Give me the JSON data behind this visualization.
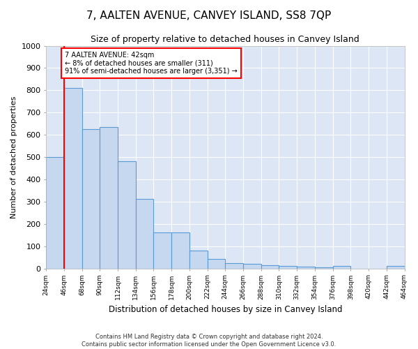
{
  "title": "7, AALTEN AVENUE, CANVEY ISLAND, SS8 7QP",
  "subtitle": "Size of property relative to detached houses in Canvey Island",
  "xlabel": "Distribution of detached houses by size in Canvey Island",
  "ylabel": "Number of detached properties",
  "footer_line1": "Contains HM Land Registry data © Crown copyright and database right 2024.",
  "footer_line2": "Contains public sector information licensed under the Open Government Licence v3.0.",
  "annotation_line1": "7 AALTEN AVENUE: 42sqm",
  "annotation_line2": "← 8% of detached houses are smaller (311)",
  "annotation_line3": "91% of semi-detached houses are larger (3,351) →",
  "bar_values": [
    500,
    810,
    625,
    635,
    483,
    311,
    162,
    162,
    80,
    44,
    25,
    22,
    15,
    12,
    8,
    5,
    10,
    0,
    0,
    10
  ],
  "bar_categories": [
    "24sqm",
    "46sqm",
    "68sqm",
    "90sqm",
    "112sqm",
    "134sqm",
    "156sqm",
    "178sqm",
    "200sqm",
    "222sqm",
    "244sqm",
    "266sqm",
    "288sqm",
    "310sqm",
    "332sqm",
    "354sqm",
    "376sqm",
    "398sqm",
    "420sqm",
    "442sqm",
    "464sqm"
  ],
  "bar_color": "#c5d8f0",
  "bar_edge_color": "#5b9bd5",
  "ylim": [
    0,
    1000
  ],
  "yticks": [
    0,
    100,
    200,
    300,
    400,
    500,
    600,
    700,
    800,
    900,
    1000
  ],
  "plot_bg_color": "#dce6f5",
  "title_fontsize": 11,
  "subtitle_fontsize": 9,
  "vline_position": 1,
  "n_bars": 20,
  "n_ticks": 21
}
